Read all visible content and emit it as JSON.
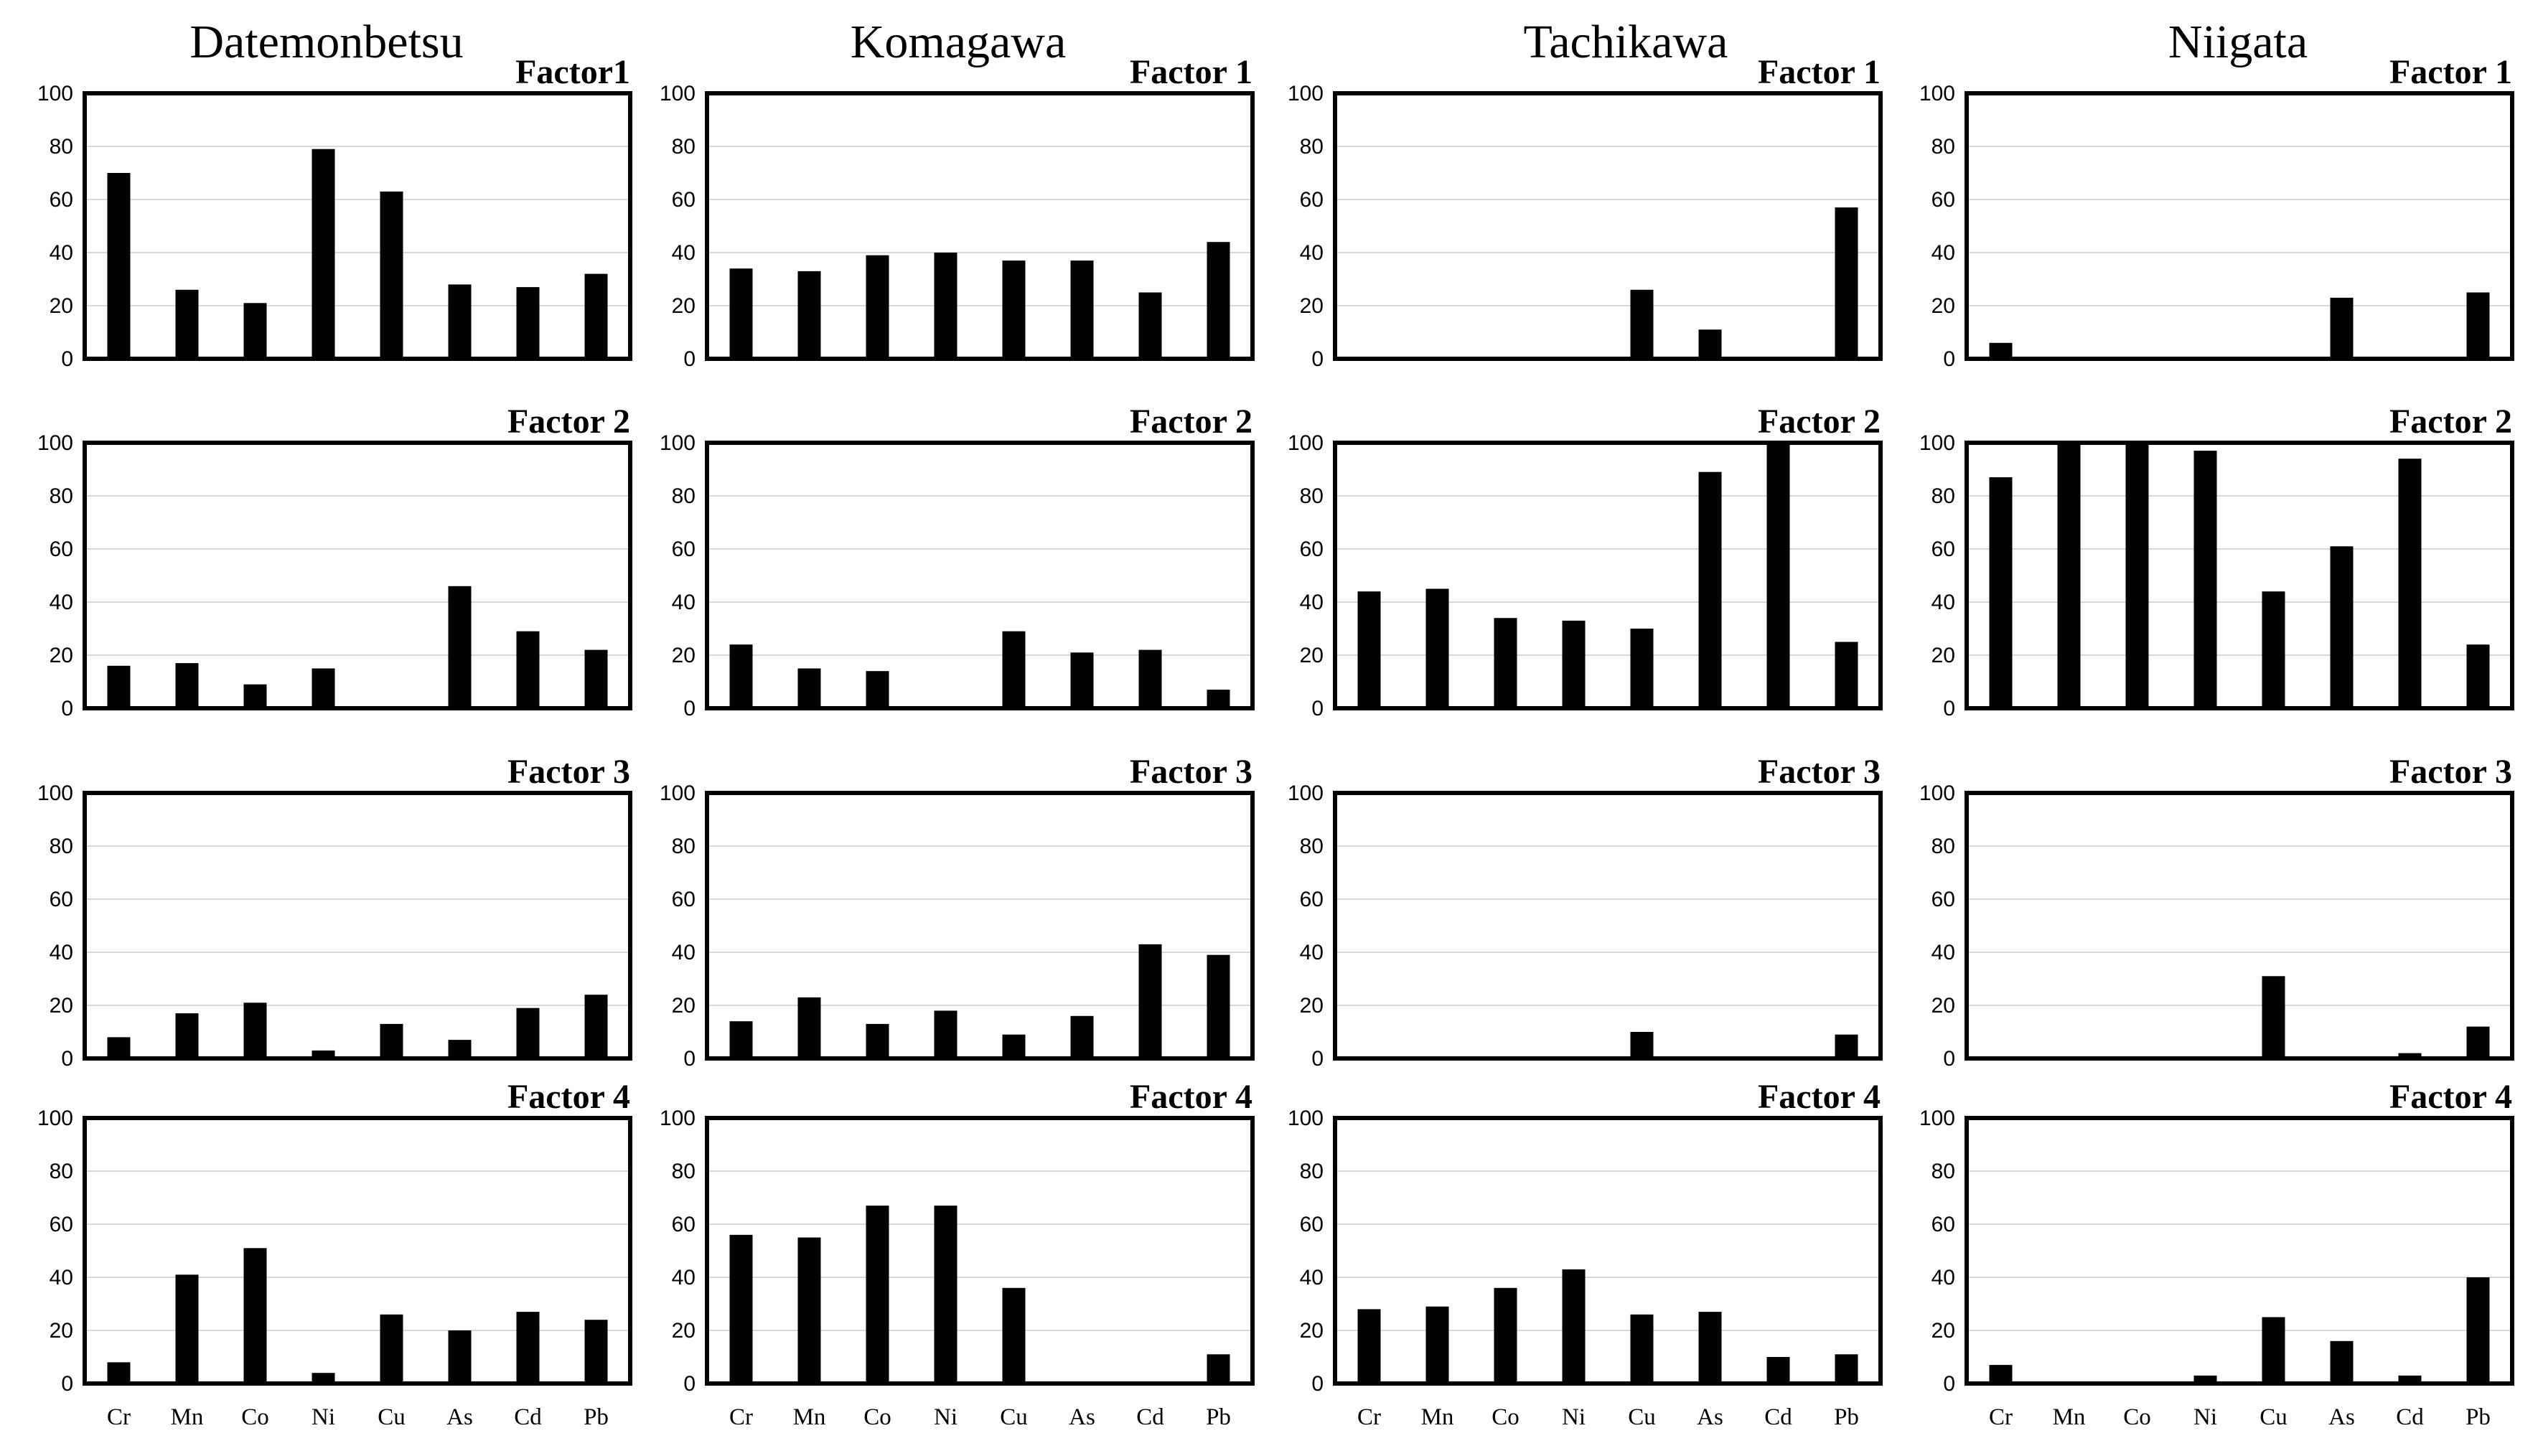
{
  "chart_data": {
    "type": "bar",
    "y_axis": {
      "ylim": [
        0,
        100
      ],
      "ticks": [
        "0",
        "20",
        "40",
        "60",
        "80",
        "100"
      ]
    },
    "categories": [
      "Cr",
      "Mn",
      "Co",
      "Ni",
      "Cu",
      "As",
      "Cd",
      "Pb"
    ],
    "sites": [
      {
        "name": "Datemonbetsu",
        "factors": [
          {
            "title": "Factor1",
            "values": [
              70,
              26,
              21,
              79,
              63,
              28,
              27,
              32
            ]
          },
          {
            "title": "Factor 2",
            "values": [
              16,
              17,
              9,
              15,
              0,
              46,
              29,
              22
            ]
          },
          {
            "title": "Factor 3",
            "values": [
              8,
              17,
              21,
              3,
              13,
              7,
              19,
              24
            ]
          },
          {
            "title": "Factor 4",
            "values": [
              8,
              41,
              51,
              4,
              26,
              20,
              27,
              24
            ]
          }
        ]
      },
      {
        "name": "Komagawa",
        "factors": [
          {
            "title": "Factor 1",
            "values": [
              34,
              33,
              39,
              40,
              37,
              37,
              25,
              44
            ]
          },
          {
            "title": "Factor 2",
            "values": [
              24,
              15,
              14,
              0,
              29,
              21,
              22,
              7
            ]
          },
          {
            "title": "Factor 3",
            "values": [
              14,
              23,
              13,
              18,
              9,
              16,
              43,
              39
            ]
          },
          {
            "title": "Factor 4",
            "values": [
              56,
              55,
              67,
              67,
              36,
              0,
              0,
              11
            ]
          }
        ]
      },
      {
        "name": "Tachikawa",
        "factors": [
          {
            "title": "Factor 1",
            "values": [
              0,
              0,
              0,
              0,
              26,
              11,
              0,
              57
            ]
          },
          {
            "title": "Factor 2",
            "values": [
              44,
              45,
              34,
              33,
              30,
              89,
              100,
              25
            ]
          },
          {
            "title": "Factor 3",
            "values": [
              0,
              0,
              0,
              0,
              10,
              0,
              0,
              9
            ]
          },
          {
            "title": "Factor 4",
            "values": [
              28,
              29,
              36,
              43,
              26,
              27,
              10,
              11
            ]
          }
        ]
      },
      {
        "name": "Niigata",
        "factors": [
          {
            "title": "Factor 1",
            "values": [
              6,
              0,
              0,
              0,
              0,
              23,
              0,
              25
            ]
          },
          {
            "title": "Factor 2",
            "values": [
              87,
              100,
              100,
              97,
              44,
              61,
              94,
              24
            ]
          },
          {
            "title": "Factor 3",
            "values": [
              0,
              0,
              0,
              0,
              31,
              0,
              2,
              12
            ]
          },
          {
            "title": "Factor 4",
            "values": [
              7,
              0,
              0,
              3,
              25,
              16,
              3,
              40
            ]
          }
        ]
      }
    ]
  }
}
